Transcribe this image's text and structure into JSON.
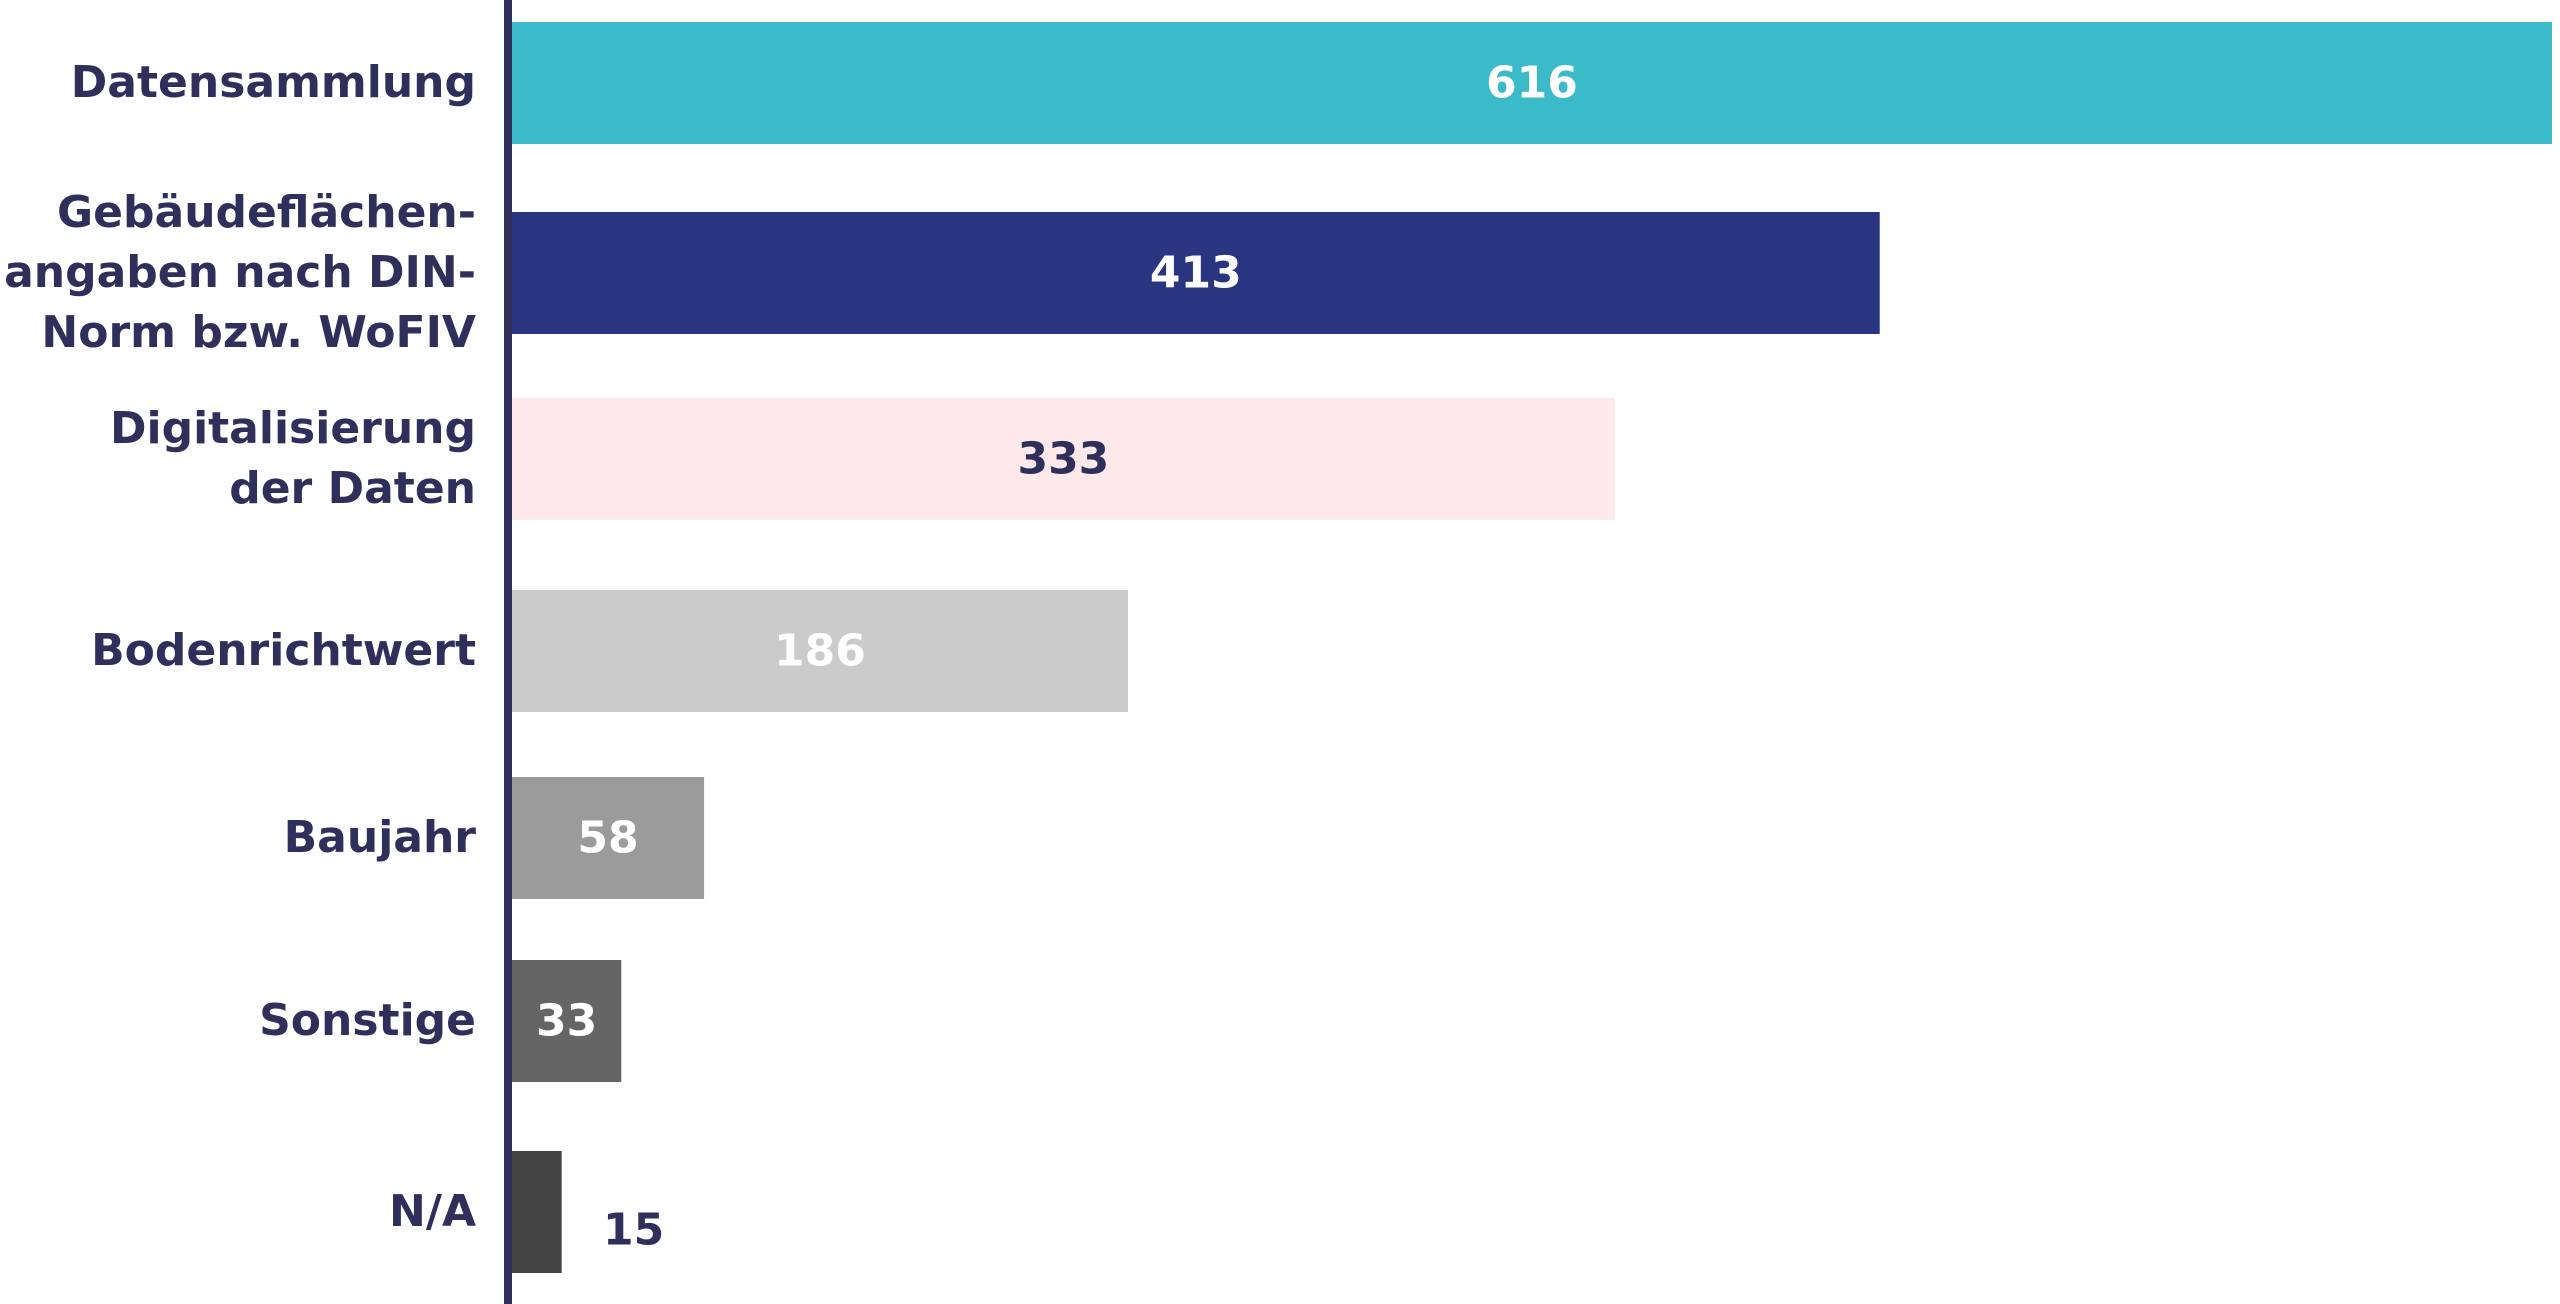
{
  "chart_data": {
    "type": "bar",
    "orientation": "horizontal",
    "categories": [
      "Datensammlung",
      "Gebäudeflächen-\nangaben nach DIN-\nNorm bzw. WoFIV",
      "Digitalisierung\nder Daten",
      "Bodenrichtwert",
      "Baujahr",
      "Sonstige",
      "N/A"
    ],
    "values": [
      616,
      413,
      333,
      186,
      58,
      33,
      15
    ],
    "value_labels": [
      "616",
      "413",
      "333",
      "186",
      "58",
      "33",
      "15"
    ],
    "bar_colors": [
      "#3bbac9",
      "#2a3582",
      "#fde8ea",
      "#cccbcc",
      "#9c9b9b",
      "#666566",
      "#454444"
    ],
    "value_label_colors": [
      "#ffffff",
      "#ffffff",
      "#2f2f5c",
      "#ffffff",
      "#ffffff",
      "#ffffff",
      "#2f2f5c"
    ],
    "value_label_position": [
      "inside",
      "inside",
      "inside",
      "inside",
      "inside",
      "inside",
      "outside"
    ],
    "label_color": "#2f2f5c",
    "axis_color": "#2f2f5c",
    "xlim": [
      0,
      616
    ],
    "grid": false,
    "legend": "none",
    "title": "",
    "xlabel": "",
    "ylabel": ""
  }
}
